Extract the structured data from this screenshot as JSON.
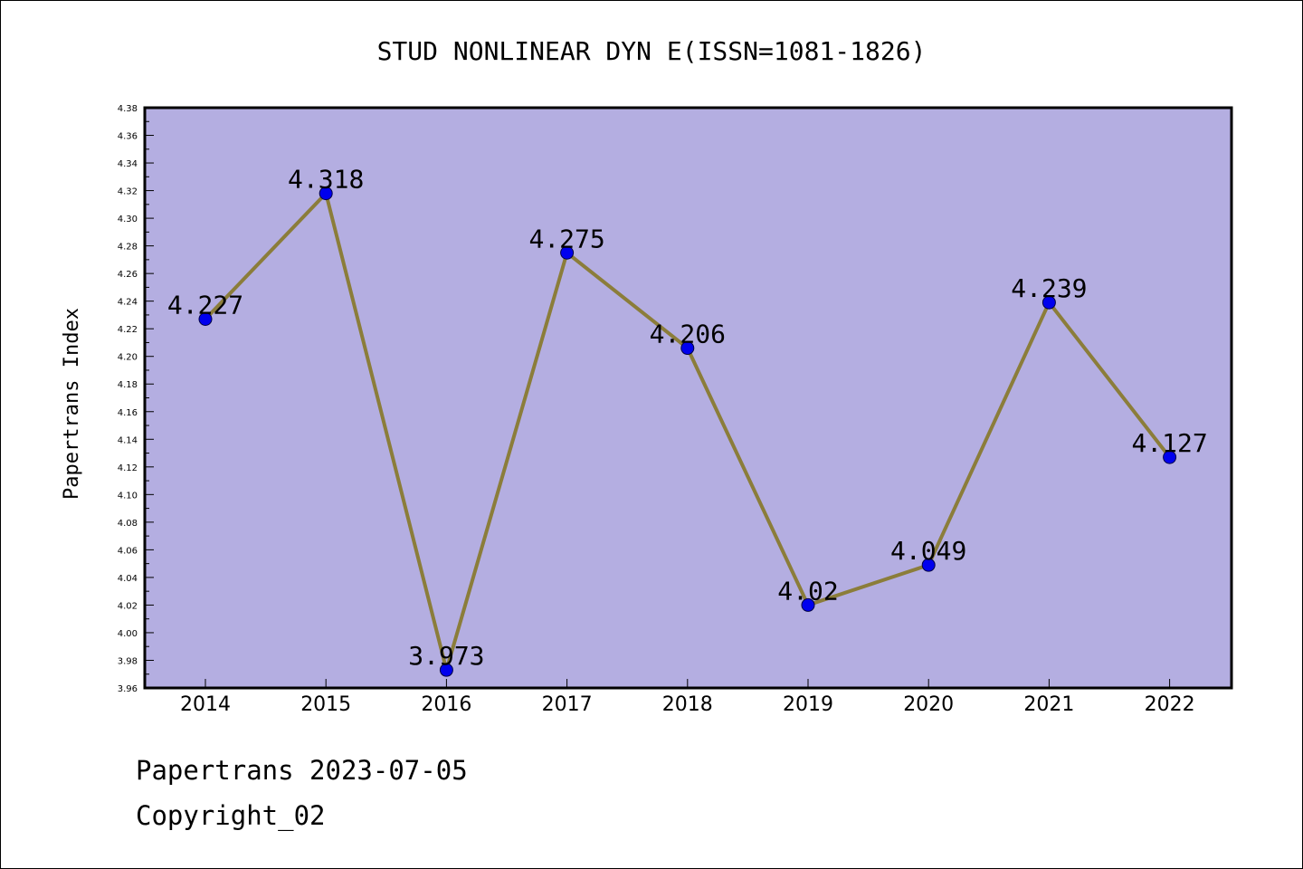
{
  "chart_data": {
    "type": "line",
    "title": "STUD NONLINEAR DYN E(ISSN=1081-1826)",
    "xlabel": "",
    "ylabel": "Papertrans Index",
    "x": [
      "2014",
      "2015",
      "2016",
      "2017",
      "2018",
      "2019",
      "2020",
      "2021",
      "2022"
    ],
    "series": [
      {
        "values": [
          4.227,
          4.318,
          3.973,
          4.275,
          4.206,
          4.02,
          4.049,
          4.239,
          4.127
        ],
        "labels": [
          "4.227",
          "4.318",
          "3.973",
          "4.275",
          "4.206",
          "4.02",
          "4.049",
          "4.239",
          "4.127"
        ]
      }
    ],
    "ylim": [
      3.96,
      4.38
    ],
    "ytick_step": 0.02,
    "ytick_labels": [
      "3.96",
      "3.98",
      "4.00",
      "4.02",
      "4.04",
      "4.06",
      "4.08",
      "4.10",
      "4.12",
      "4.14",
      "4.16",
      "4.18",
      "4.20",
      "4.22",
      "4.24",
      "4.26",
      "4.28",
      "4.30",
      "4.32",
      "4.34",
      "4.36",
      "4.38"
    ],
    "grid": false,
    "legend": "none",
    "colors": {
      "plot_background": "#b4aee1",
      "line": "#8b7d3a",
      "marker": "#0000ee"
    }
  },
  "footer": {
    "source": "Papertrans 2023-07-05",
    "copyright": "Copyright_02"
  }
}
